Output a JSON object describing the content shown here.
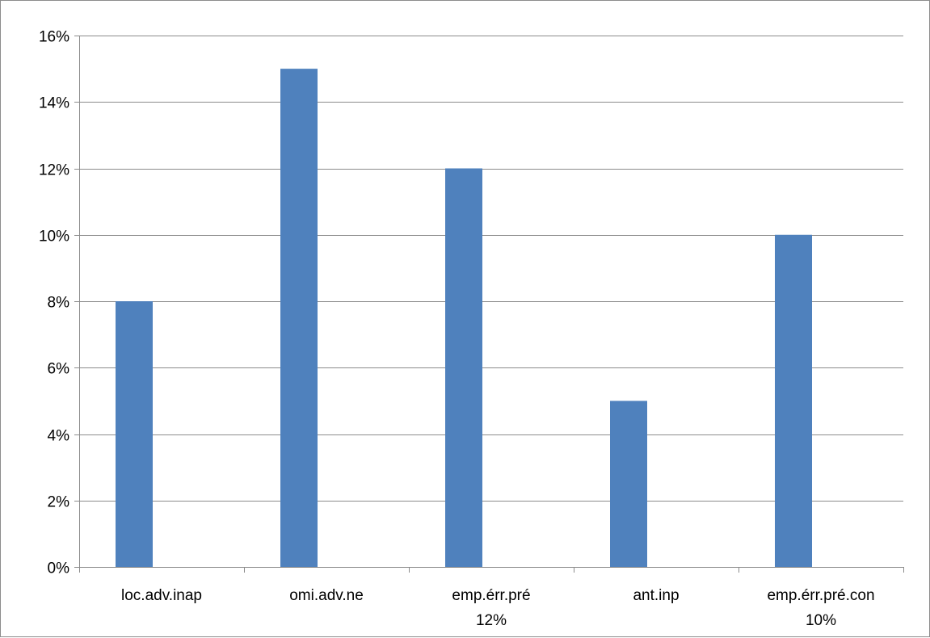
{
  "chart_data": {
    "type": "bar",
    "title": "",
    "xlabel": "",
    "ylabel": "",
    "categories": [
      [
        "loc.adv.inap"
      ],
      [
        "omi.adv.ne"
      ],
      [
        "emp.érr.pré",
        "12%"
      ],
      [
        "ant.inp"
      ],
      [
        "emp.érr.pré.con",
        "10%"
      ]
    ],
    "values": [
      8,
      15,
      12,
      5,
      10
    ],
    "ylim": [
      0,
      16
    ],
    "yticks": [
      "0%",
      "2%",
      "4%",
      "6%",
      "8%",
      "10%",
      "12%",
      "14%",
      "16%"
    ],
    "grid": true,
    "legend": "none",
    "colors": {
      "bar": "#4f81bd",
      "grid": "#8c8c8c",
      "axis": "#8c8c8c"
    }
  }
}
